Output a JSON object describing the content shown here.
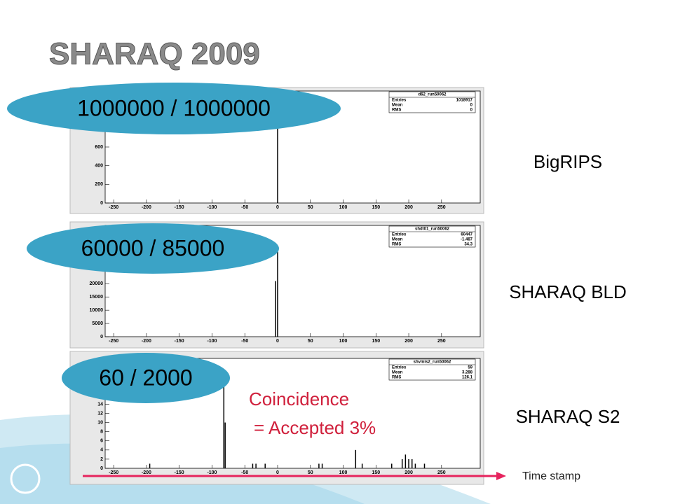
{
  "title": "SHARAQ 2009",
  "counts": [
    "1000000 / 1000000",
    "60000 / 85000",
    "60 / 2000"
  ],
  "detectors": [
    "BigRIPS",
    "SHARAQ BLD",
    "SHARAQ S2"
  ],
  "note": [
    "Coincidence",
    "= Accepted 3%"
  ],
  "time_axis": "Time stamp",
  "chart_data": [
    {
      "type": "spikes",
      "name": "d62_run50062",
      "stats": [
        {
          "label": "Entries",
          "value": 1018917
        },
        {
          "label": "Mean",
          "value": 0
        },
        {
          "label": "RMS",
          "value": 0
        }
      ],
      "xlim": [
        -263,
        309
      ],
      "xticks": [
        -250,
        -200,
        -150,
        -100,
        -50,
        0,
        50,
        100,
        150,
        200,
        250
      ],
      "ylim": [
        0,
        1200
      ],
      "yticks": [
        0,
        200,
        400,
        600
      ],
      "x": [
        0
      ],
      "values": [
        1100
      ],
      "color": "#000000"
    },
    {
      "type": "spikes",
      "name": "shdt01_run50062",
      "stats": [
        {
          "label": "Entries",
          "value": 60447
        },
        {
          "label": "Mean",
          "value": -1.487
        },
        {
          "label": "RMS",
          "value": 34.3
        }
      ],
      "xlim": [
        -263,
        309
      ],
      "xticks": [
        -250,
        -200,
        -150,
        -100,
        -50,
        0,
        50,
        100,
        150,
        200,
        250
      ],
      "ylim": [
        0,
        42000
      ],
      "yticks": [
        0,
        5000,
        10000,
        15000,
        20000
      ],
      "x": [
        -3,
        0
      ],
      "values": [
        21000,
        33000
      ],
      "color": "#000000"
    },
    {
      "type": "spikes",
      "name": "shvmis2_run50062",
      "stats": [
        {
          "label": "Entries",
          "value": 59
        },
        {
          "label": "Mean",
          "value": 3.288
        },
        {
          "label": "RMS",
          "value": 126.1
        }
      ],
      "xlim": [
        -263,
        309
      ],
      "xticks": [
        -250,
        -200,
        -150,
        -100,
        -50,
        0,
        50,
        100,
        150,
        200,
        250
      ],
      "ylim": [
        0,
        24
      ],
      "yticks": [
        0,
        2,
        4,
        6,
        8,
        10,
        12,
        14
      ],
      "x": [
        -195,
        -82,
        -80,
        -38,
        -33,
        -19,
        63,
        68,
        119,
        129,
        174,
        190,
        195,
        200,
        205,
        210,
        224
      ],
      "values": [
        1,
        19,
        10,
        1,
        1,
        1,
        1,
        1,
        4,
        1,
        1,
        2,
        3,
        2,
        2,
        1,
        1
      ],
      "color": "#000000"
    }
  ]
}
